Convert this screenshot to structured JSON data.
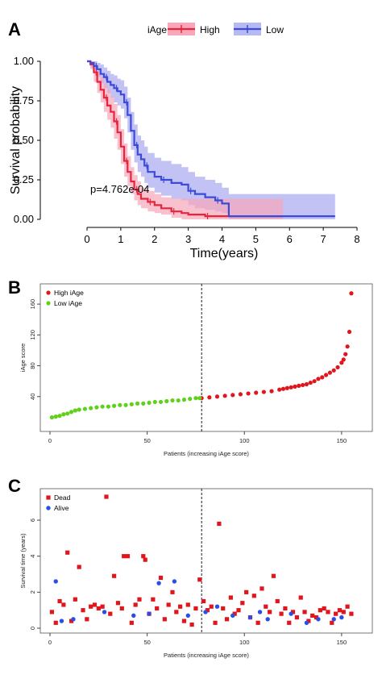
{
  "colors": {
    "high": "#e8243c",
    "low": "#3b4bd8",
    "high_band": "#f6a7b9",
    "low_band": "#b7b9f2",
    "overlap": "#9b6ad8",
    "green": "#5fd11a",
    "red": "#e0161c",
    "blue": "#2b4ee6"
  },
  "chart_data": [
    {
      "panel": "A",
      "type": "line",
      "xlabel": "Time(years)",
      "ylabel": "Survival probability",
      "xlim": [
        0,
        8
      ],
      "ylim": [
        0,
        1
      ],
      "xticks": [
        "0",
        "1",
        "2",
        "3",
        "4",
        "5",
        "6",
        "7",
        "8"
      ],
      "yticks": [
        "0.00",
        "0.25",
        "0.50",
        "0.75",
        "1.00"
      ],
      "legend_title": "iAge",
      "pvalue": "p=4.762e-04",
      "series": [
        {
          "name": "High",
          "x": [
            0,
            0.1,
            0.2,
            0.3,
            0.4,
            0.5,
            0.6,
            0.7,
            0.8,
            0.9,
            1.0,
            1.1,
            1.2,
            1.3,
            1.4,
            1.5,
            1.6,
            1.8,
            2.0,
            2.2,
            2.5,
            2.8,
            3.0,
            3.5,
            4.0,
            5.8
          ],
          "y": [
            1.0,
            0.98,
            0.93,
            0.87,
            0.82,
            0.77,
            0.72,
            0.68,
            0.62,
            0.55,
            0.46,
            0.37,
            0.3,
            0.24,
            0.19,
            0.16,
            0.13,
            0.11,
            0.09,
            0.07,
            0.05,
            0.04,
            0.03,
            0.02,
            0.02,
            0.02
          ],
          "upper": [
            1.0,
            1.0,
            0.98,
            0.94,
            0.9,
            0.86,
            0.82,
            0.78,
            0.73,
            0.66,
            0.57,
            0.48,
            0.4,
            0.33,
            0.28,
            0.24,
            0.2,
            0.18,
            0.16,
            0.14,
            0.13,
            0.13,
            0.13,
            0.13,
            0.13,
            0.13
          ],
          "lower": [
            1.0,
            0.95,
            0.87,
            0.8,
            0.74,
            0.68,
            0.63,
            0.58,
            0.51,
            0.44,
            0.35,
            0.27,
            0.21,
            0.16,
            0.12,
            0.09,
            0.07,
            0.05,
            0.04,
            0.03,
            0.01,
            0.0,
            0.0,
            0.0,
            0.0,
            0.0
          ]
        },
        {
          "name": "Low",
          "x": [
            0,
            0.1,
            0.2,
            0.3,
            0.4,
            0.5,
            0.6,
            0.7,
            0.8,
            0.9,
            1.0,
            1.1,
            1.2,
            1.3,
            1.4,
            1.5,
            1.6,
            1.7,
            1.8,
            2.0,
            2.2,
            2.5,
            2.8,
            3.0,
            3.2,
            3.5,
            3.8,
            4.0,
            4.2,
            5.8,
            7.35
          ],
          "y": [
            1.0,
            0.99,
            0.97,
            0.95,
            0.92,
            0.9,
            0.87,
            0.85,
            0.83,
            0.81,
            0.79,
            0.74,
            0.66,
            0.56,
            0.47,
            0.41,
            0.38,
            0.34,
            0.3,
            0.27,
            0.25,
            0.23,
            0.22,
            0.18,
            0.16,
            0.14,
            0.12,
            0.1,
            0.02,
            0.02,
            0.02
          ],
          "upper": [
            1.0,
            1.0,
            1.0,
            0.99,
            0.98,
            0.96,
            0.94,
            0.92,
            0.91,
            0.89,
            0.88,
            0.84,
            0.77,
            0.68,
            0.6,
            0.53,
            0.5,
            0.46,
            0.42,
            0.39,
            0.37,
            0.35,
            0.33,
            0.3,
            0.27,
            0.25,
            0.23,
            0.2,
            0.16,
            0.16,
            0.16
          ],
          "lower": [
            1.0,
            0.96,
            0.93,
            0.9,
            0.86,
            0.83,
            0.8,
            0.77,
            0.74,
            0.72,
            0.7,
            0.64,
            0.55,
            0.44,
            0.36,
            0.3,
            0.27,
            0.23,
            0.2,
            0.17,
            0.15,
            0.13,
            0.12,
            0.09,
            0.07,
            0.06,
            0.05,
            0.04,
            0.0,
            0.0,
            0.0
          ]
        }
      ]
    },
    {
      "panel": "B",
      "type": "scatter",
      "xlabel": "Patients (increasing iAge score)",
      "ylabel": "iAge score",
      "xlim": [
        0,
        160
      ],
      "ylim": [
        0,
        180
      ],
      "xticks": [
        "0",
        "50",
        "100",
        "150"
      ],
      "yticks": [
        "40",
        "80",
        "120",
        "160"
      ],
      "cutoff": 78,
      "series": [
        {
          "name": "High iAge",
          "x": [
            78,
            82,
            86,
            90,
            94,
            98,
            102,
            106,
            110,
            114,
            118,
            120,
            122,
            124,
            126,
            128,
            130,
            132,
            134,
            136,
            138,
            140,
            142,
            144,
            146,
            148,
            150,
            151,
            152,
            153,
            154,
            155
          ],
          "y": [
            38,
            39,
            40,
            41,
            42,
            43,
            44,
            45,
            46,
            47,
            49,
            50,
            51,
            52,
            53,
            54,
            55,
            56,
            58,
            60,
            63,
            65,
            68,
            71,
            74,
            78,
            84,
            88,
            95,
            105,
            124,
            174
          ]
        },
        {
          "name": "Low iAge",
          "x": [
            1,
            3,
            5,
            7,
            9,
            11,
            13,
            15,
            18,
            21,
            24,
            27,
            30,
            33,
            36,
            39,
            42,
            45,
            48,
            51,
            54,
            57,
            60,
            63,
            66,
            69,
            72,
            75,
            77
          ],
          "y": [
            13,
            14,
            15,
            17,
            18,
            20,
            22,
            23,
            24,
            25,
            26,
            27,
            27,
            28,
            29,
            29,
            30,
            31,
            31,
            32,
            33,
            33,
            34,
            35,
            35,
            36,
            37,
            38,
            38
          ]
        }
      ]
    },
    {
      "panel": "C",
      "type": "scatter",
      "xlabel": "Patients (increasing iAge score)",
      "ylabel": "Survival time (years)",
      "xlim": [
        0,
        160
      ],
      "ylim": [
        0,
        7.3
      ],
      "xticks": [
        "0",
        "50",
        "100",
        "150"
      ],
      "yticks": [
        "0",
        "2",
        "4",
        "6"
      ],
      "cutoff": 78,
      "series": [
        {
          "name": "Dead",
          "x": [
            1,
            3,
            5,
            7,
            9,
            11,
            13,
            15,
            17,
            19,
            21,
            23,
            25,
            27,
            29,
            31,
            33,
            35,
            37,
            38,
            40,
            42,
            44,
            46,
            48,
            49,
            51,
            53,
            55,
            57,
            59,
            61,
            63,
            65,
            67,
            69,
            71,
            73,
            75,
            77,
            79,
            81,
            83,
            85,
            87,
            89,
            91,
            93,
            95,
            97,
            99,
            101,
            103,
            105,
            107,
            109,
            111,
            113,
            115,
            117,
            119,
            121,
            123,
            125,
            127,
            129,
            131,
            133,
            135,
            137,
            139,
            141,
            143,
            145,
            147,
            149,
            151,
            153,
            155
          ],
          "y": [
            0.9,
            0.3,
            1.5,
            1.3,
            4.2,
            0.4,
            1.6,
            3.4,
            1.0,
            0.5,
            1.2,
            1.3,
            1.1,
            1.2,
            7.3,
            0.8,
            2.9,
            1.4,
            1.1,
            4.0,
            4.0,
            0.3,
            1.3,
            1.6,
            4.0,
            3.8,
            0.8,
            1.6,
            1.1,
            2.8,
            0.5,
            1.3,
            2.0,
            0.9,
            1.2,
            0.4,
            1.3,
            0.2,
            1.1,
            2.7,
            1.5,
            1.0,
            1.2,
            0.3,
            5.8,
            1.1,
            0.5,
            1.7,
            0.8,
            1.0,
            1.4,
            2.0,
            0.6,
            1.8,
            0.3,
            2.2,
            1.2,
            0.9,
            2.9,
            1.5,
            0.8,
            1.1,
            0.3,
            0.9,
            0.6,
            1.7,
            0.9,
            0.4,
            0.7,
            0.6,
            1.0,
            1.1,
            0.9,
            0.3,
            0.8,
            1.0,
            0.9,
            1.2,
            0.8
          ]
        },
        {
          "name": "Alive",
          "x": [
            3,
            6,
            12,
            28,
            43,
            51,
            56,
            64,
            71,
            80,
            86,
            94,
            103,
            108,
            112,
            124,
            132,
            138,
            146,
            150
          ],
          "y": [
            2.6,
            0.4,
            0.5,
            0.9,
            0.7,
            0.8,
            2.5,
            2.6,
            0.7,
            0.9,
            1.2,
            0.7,
            0.6,
            0.9,
            0.5,
            0.8,
            0.3,
            0.5,
            0.5,
            0.6
          ]
        }
      ]
    }
  ]
}
